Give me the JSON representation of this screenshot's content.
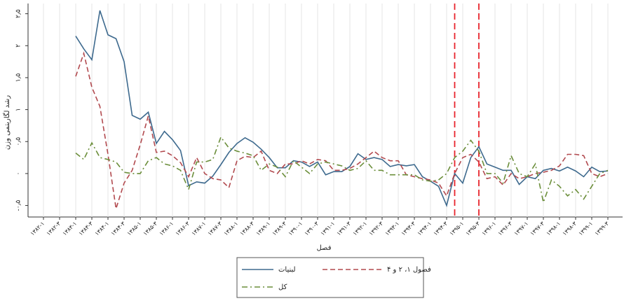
{
  "chart_data": {
    "type": "line",
    "y_label": "رشد لگاریتمی وزن",
    "x_label": "فصل",
    "categories": [
      "۱۳۸۲-۱",
      null,
      "۱۳۸۲-۳",
      null,
      "۱۳۸۳-۱",
      null,
      "۱۳۸۳-۳",
      null,
      "۱۳۸۴-۱",
      null,
      "۱۳۸۴-۳",
      null,
      "۱۳۸۵-۱",
      null,
      "۱۳۸۵-۳",
      null,
      "۱۳۸۶-۱",
      null,
      "۱۳۸۶-۳",
      null,
      "۱۳۸۷-۱",
      null,
      "۱۳۸۷-۳",
      null,
      "۱۳۸۸-۱",
      null,
      "۱۳۸۸-۳",
      null,
      "۱۳۸۹-۱",
      null,
      "۱۳۸۹-۳",
      null,
      "۱۳۹۰-۱",
      null,
      "۱۳۹۰-۳",
      null,
      "۱۳۹۱-۱",
      null,
      "۱۳۹۱-۳",
      null,
      "۱۳۹۲-۱",
      null,
      "۱۳۹۲-۳",
      null,
      "۱۳۹۳-۱",
      null,
      "۱۳۹۳-۳",
      null,
      "۱۳۹۴-۱",
      null,
      "۱۳۹۴-۳",
      null,
      "۱۳۹۵-۱",
      null,
      "۱۳۹۵-۳",
      null,
      "۱۳۹۶-۱",
      null,
      "۱۳۹۶-۳",
      null,
      "۱۳۹۷-۱",
      null,
      "۱۳۹۷-۳",
      null,
      "۱۳۹۸-۱",
      null,
      "۱۳۹۸-۳",
      null,
      "۱۳۹۹-۱",
      null,
      "۱۳۹۹-۳",
      null
    ],
    "series": [
      {
        "name": "لبنیات",
        "color": "#3e6a8e",
        "dash": "solid",
        "values": [
          null,
          null,
          null,
          null,
          2.15,
          1.95,
          1.78,
          2.55,
          2.17,
          2.11,
          1.75,
          0.91,
          0.85,
          0.96,
          0.47,
          0.66,
          0.53,
          0.36,
          -0.19,
          -0.13,
          -0.15,
          -0.04,
          0.14,
          0.33,
          0.47,
          0.56,
          0.49,
          0.38,
          0.25,
          0.09,
          0.09,
          0.2,
          0.18,
          0.11,
          0.18,
          -0.02,
          0.03,
          0.03,
          0.11,
          0.31,
          0.22,
          0.25,
          0.22,
          0.11,
          0.14,
          0.12,
          0.14,
          -0.05,
          -0.12,
          -0.2,
          -0.5,
          0.0,
          -0.15,
          0.25,
          0.42,
          0.15,
          0.1,
          0.05,
          0.05,
          -0.17,
          -0.05,
          -0.08,
          0.05,
          0.08,
          0.04,
          0.1,
          0.04,
          -0.05,
          0.1,
          0.03,
          0.04,
          null
        ]
      },
      {
        "name": "فصول ۱، ۲ و ۴",
        "color": "#b24a4f",
        "dash": "dashed",
        "values": [
          null,
          null,
          null,
          null,
          1.52,
          1.88,
          1.35,
          1.05,
          0.3,
          -0.55,
          -0.15,
          0.05,
          0.45,
          0.9,
          0.33,
          0.35,
          0.28,
          0.17,
          -0.05,
          0.25,
          0.0,
          -0.08,
          -0.1,
          -0.22,
          0.2,
          0.27,
          0.25,
          0.35,
          0.05,
          0.0,
          0.15,
          0.15,
          0.2,
          0.15,
          0.22,
          0.2,
          0.05,
          0.05,
          0.08,
          0.15,
          0.25,
          0.35,
          0.25,
          0.2,
          0.2,
          -0.02,
          -0.05,
          -0.08,
          -0.1,
          -0.15,
          -0.35,
          0.0,
          0.25,
          0.3,
          0.18,
          -0.08,
          -0.05,
          -0.18,
          0.0,
          -0.08,
          -0.05,
          0.0,
          0.02,
          0.05,
          0.12,
          0.3,
          0.3,
          0.28,
          0.0,
          -0.05,
          0.0,
          null
        ]
      },
      {
        "name": "کل",
        "color": "#6b8e3a",
        "dash": "dashdot",
        "values": [
          null,
          null,
          null,
          null,
          0.32,
          0.22,
          0.48,
          0.25,
          0.22,
          0.18,
          0.02,
          0.0,
          0.0,
          0.2,
          0.25,
          0.15,
          0.12,
          0.05,
          -0.25,
          0.18,
          0.18,
          0.22,
          0.57,
          0.4,
          0.35,
          0.32,
          0.28,
          0.05,
          0.15,
          0.1,
          -0.05,
          0.2,
          0.1,
          0.0,
          0.15,
          0.18,
          0.15,
          0.12,
          0.05,
          0.08,
          0.2,
          0.05,
          0.05,
          -0.02,
          -0.02,
          -0.02,
          -0.02,
          -0.1,
          -0.12,
          -0.1,
          0.0,
          0.25,
          0.35,
          0.52,
          0.35,
          0.0,
          0.0,
          -0.15,
          0.28,
          0.0,
          -0.05,
          0.15,
          -0.45,
          -0.1,
          -0.2,
          -0.35,
          -0.25,
          -0.4,
          -0.2,
          0.0,
          0.05,
          null
        ]
      }
    ],
    "vlines": [
      51,
      54
    ],
    "vline_color": "#e8242c",
    "ylim": [
      -0.68,
      2.66
    ],
    "yticks": [
      {
        "value": -0.5,
        "label": "-۰٫۵"
      },
      {
        "value": 0,
        "label": "۰"
      },
      {
        "value": 0.5,
        "label": "۰٫۵"
      },
      {
        "value": 1,
        "label": "۱"
      },
      {
        "value": 1.5,
        "label": "۱٫۵"
      },
      {
        "value": 2,
        "label": "۲"
      },
      {
        "value": 2.5,
        "label": "۲٫۵"
      }
    ],
    "grid": "x",
    "legend": "bottom"
  }
}
